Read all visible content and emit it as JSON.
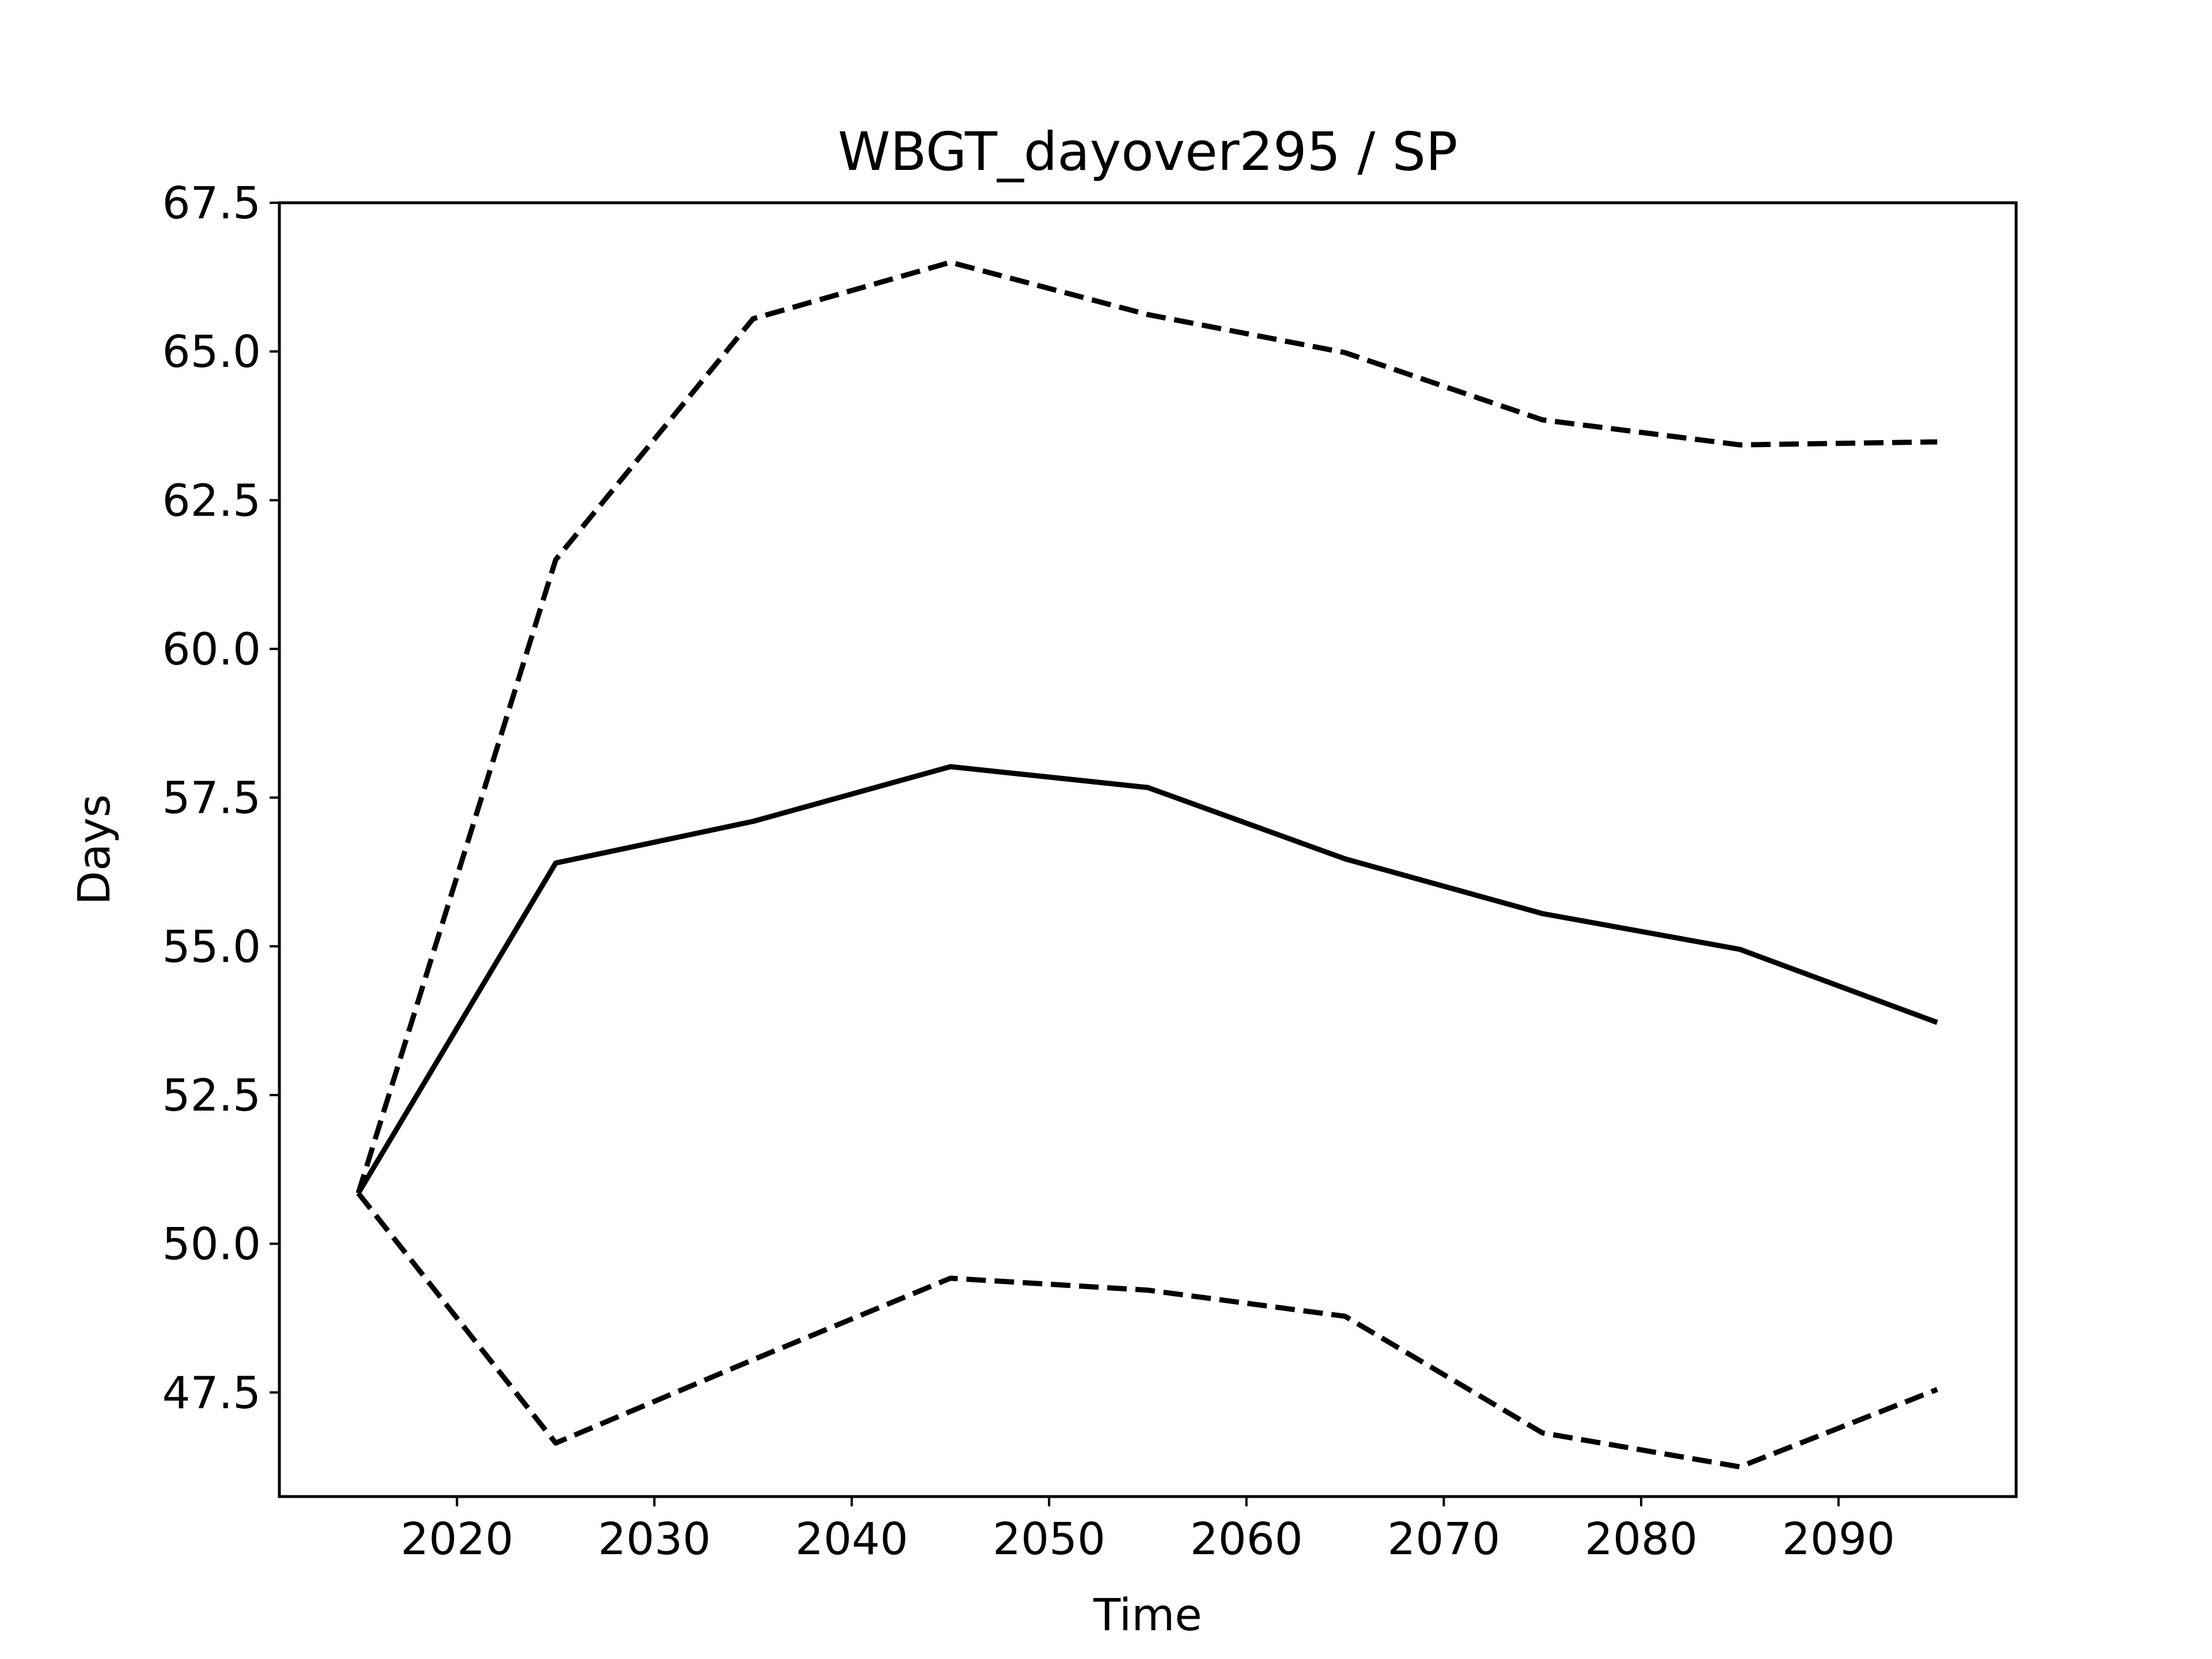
{
  "chart_data": {
    "type": "line",
    "title": "WBGT_dayover295 / SP",
    "xlabel": "Time",
    "ylabel": "Days",
    "x": [
      2015,
      2025,
      2035,
      2045,
      2055,
      2065,
      2075,
      2085,
      2095
    ],
    "xlim": [
      2011,
      2099
    ],
    "ylim": [
      45.75,
      67.5
    ],
    "xticks": [
      2020,
      2030,
      2040,
      2050,
      2060,
      2070,
      2080,
      2090
    ],
    "xtick_labels": [
      "2020",
      "2030",
      "2040",
      "2050",
      "2060",
      "2070",
      "2080",
      "2090"
    ],
    "yticks": [
      47.5,
      50.0,
      52.5,
      55.0,
      57.5,
      60.0,
      62.5,
      65.0,
      67.5
    ],
    "ytick_labels": [
      "47.5",
      "50.0",
      "52.5",
      "55.0",
      "57.5",
      "60.0",
      "62.5",
      "65.0",
      "67.5"
    ],
    "grid": false,
    "legend": "none",
    "series": [
      {
        "style": "solid",
        "color": "#000000",
        "values": [
          50.85,
          56.4,
          57.1,
          58.02,
          57.67,
          56.47,
          55.55,
          54.95,
          53.72
        ]
      },
      {
        "style": "dashed",
        "color": "#000000",
        "values": [
          50.85,
          61.5,
          65.55,
          66.5,
          65.62,
          64.98,
          63.85,
          63.43,
          63.48
        ]
      },
      {
        "style": "dashed",
        "color": "#000000",
        "values": [
          50.85,
          46.65,
          48.05,
          49.42,
          49.22,
          48.78,
          46.82,
          46.25,
          47.55
        ]
      }
    ]
  }
}
